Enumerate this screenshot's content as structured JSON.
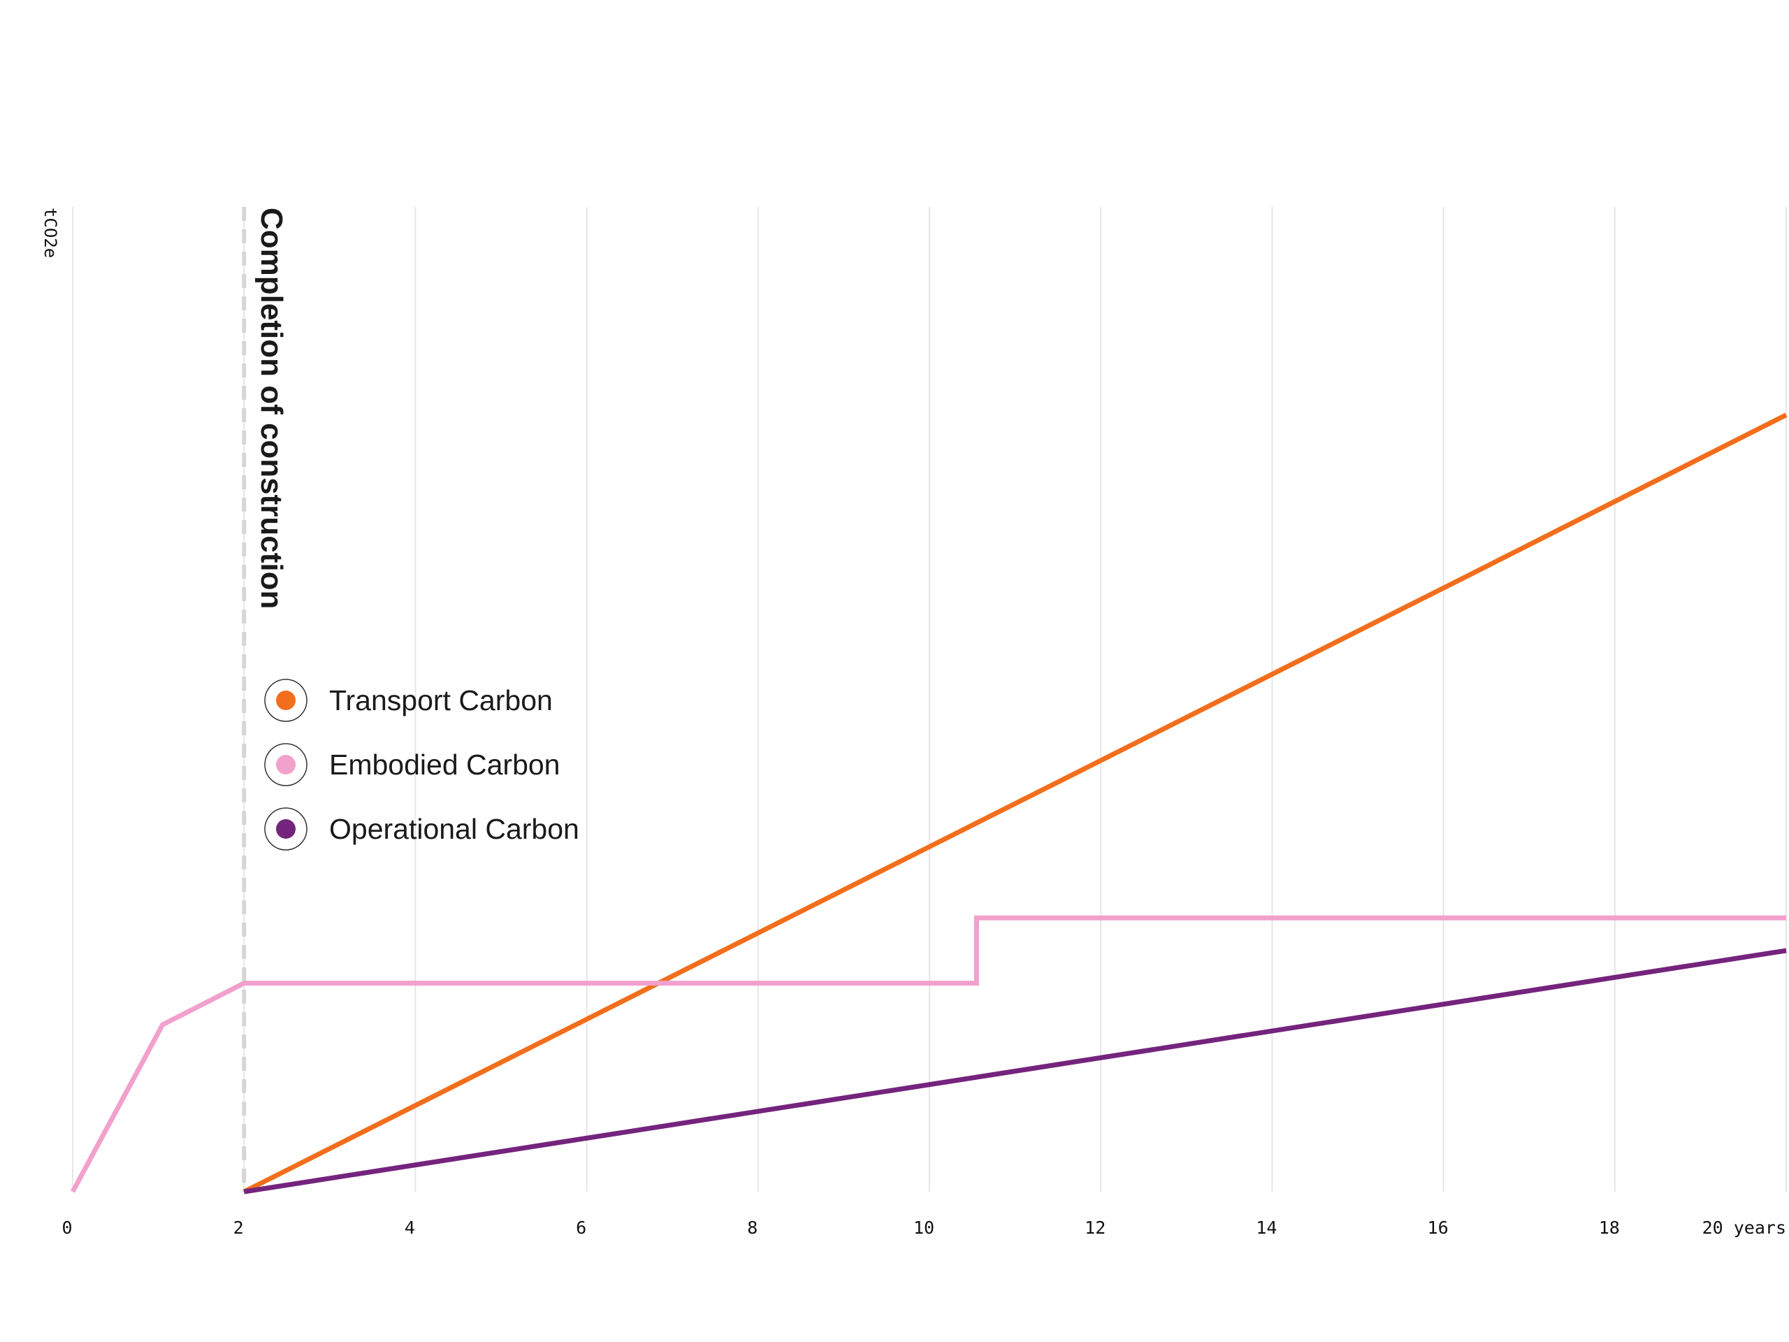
{
  "chart_data": {
    "type": "line",
    "title": "",
    "xlabel": "",
    "ylabel": "tCO2e",
    "x_unit_label": "years",
    "x_ticks": [
      0,
      2,
      4,
      6,
      8,
      10,
      12,
      14,
      16,
      18,
      20
    ],
    "xlim": [
      0,
      20
    ],
    "ylim": [
      0,
      100
    ],
    "grid": "vertical",
    "legend_position": "center-left",
    "annotation": {
      "x": 2,
      "label": "Completion of construction",
      "color": "#d6d6d6"
    },
    "series": [
      {
        "name": "Transport Carbon",
        "color": "#f26e1c",
        "points": [
          [
            2,
            0
          ],
          [
            16.3,
            62.4
          ],
          [
            20,
            78.6
          ]
        ]
      },
      {
        "name": "Embodied Carbon",
        "color": "#f2a0cc",
        "points": [
          [
            0,
            0
          ],
          [
            1.05,
            16.9
          ],
          [
            2,
            21.1
          ],
          [
            10.55,
            21.1
          ],
          [
            10.55,
            27.7
          ],
          [
            20,
            27.7
          ]
        ]
      },
      {
        "name": "Operational Carbon",
        "color": "#74247d",
        "points": [
          [
            2,
            0
          ],
          [
            20,
            24.4
          ]
        ]
      }
    ]
  }
}
